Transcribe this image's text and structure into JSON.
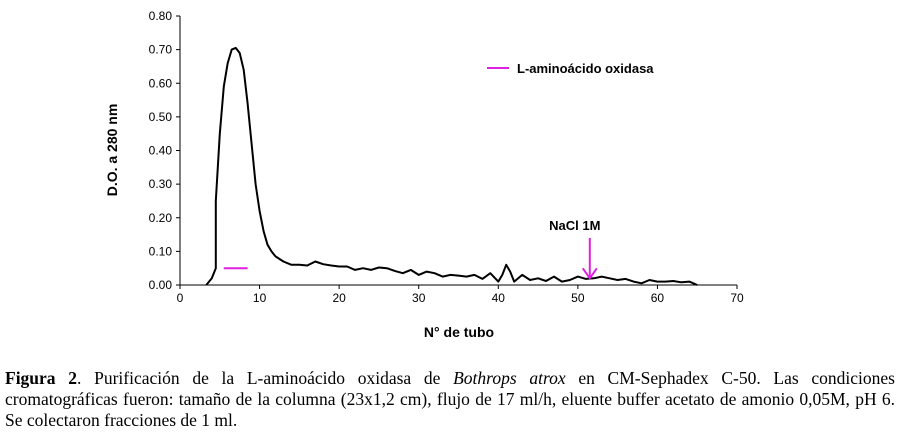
{
  "chart_data": {
    "type": "line",
    "xlabel": "N° de tubo",
    "ylabel": "D.O. a 280 nm",
    "xlim": [
      0,
      70
    ],
    "ylim": [
      0,
      0.8
    ],
    "x_ticks": [
      "0",
      "10",
      "20",
      "30",
      "40",
      "50",
      "60",
      "70"
    ],
    "y_ticks": [
      "0.00",
      "0.10",
      "0.20",
      "0.30",
      "0.40",
      "0.50",
      "0.60",
      "0.70",
      "0.80"
    ],
    "grid": false,
    "legend_position": "top-right",
    "legend_label": "L-aminoácido oxidasa",
    "legend_color": "#e020e0",
    "line_color": "#000000",
    "series": [
      {
        "x": [
          3.3,
          4,
          4.5,
          4.5,
          5,
          5.5,
          6,
          6.5,
          7,
          7.5,
          8,
          8.5,
          9,
          9.5,
          10,
          10.5,
          11,
          11.5,
          12,
          13,
          14,
          15,
          16,
          17,
          18,
          19,
          20,
          21,
          22,
          23,
          24,
          25,
          26,
          27,
          28,
          29,
          30,
          31,
          32,
          33,
          34,
          35,
          36,
          37,
          38,
          39,
          40,
          40.5,
          41,
          41.5,
          42,
          43,
          44,
          45,
          46,
          47,
          48,
          49,
          50,
          51,
          52,
          53,
          54,
          55,
          56,
          57,
          58,
          59,
          60,
          61,
          62,
          63,
          64,
          65
        ],
        "values": [
          0.0,
          0.02,
          0.05,
          0.25,
          0.45,
          0.59,
          0.66,
          0.7,
          0.705,
          0.69,
          0.64,
          0.54,
          0.42,
          0.3,
          0.22,
          0.16,
          0.12,
          0.1,
          0.085,
          0.07,
          0.06,
          0.06,
          0.058,
          0.07,
          0.062,
          0.058,
          0.055,
          0.055,
          0.045,
          0.05,
          0.045,
          0.052,
          0.05,
          0.042,
          0.035,
          0.045,
          0.03,
          0.04,
          0.035,
          0.025,
          0.03,
          0.028,
          0.025,
          0.03,
          0.018,
          0.035,
          0.01,
          0.03,
          0.06,
          0.04,
          0.01,
          0.03,
          0.015,
          0.02,
          0.012,
          0.025,
          0.01,
          0.015,
          0.025,
          0.018,
          0.02,
          0.025,
          0.02,
          0.015,
          0.018,
          0.01,
          0.005,
          0.015,
          0.01,
          0.01,
          0.012,
          0.008,
          0.01,
          0.0
        ]
      }
    ],
    "enzyme_marker": {
      "x_start": 5.5,
      "x_end": 8.5,
      "y": 0.05
    },
    "arrow": {
      "label": "NaCl 1M",
      "x": 51.5,
      "y_top": 0.14,
      "y_tip": 0.02
    }
  },
  "caption": {
    "label": "Figura 2",
    "text_1": ". Purificación de la L-aminoácido oxidasa de ",
    "species": "Bothrops atrox",
    "text_2": " en CM-Sephadex C-50. Las condiciones cromatográficas fueron: tamaño de la columna (23x1,2 cm), flujo de 17 ml/h, eluente buffer acetato de amonio 0,05M, pH 6. Se colectaron fracciones de 1 ml."
  }
}
